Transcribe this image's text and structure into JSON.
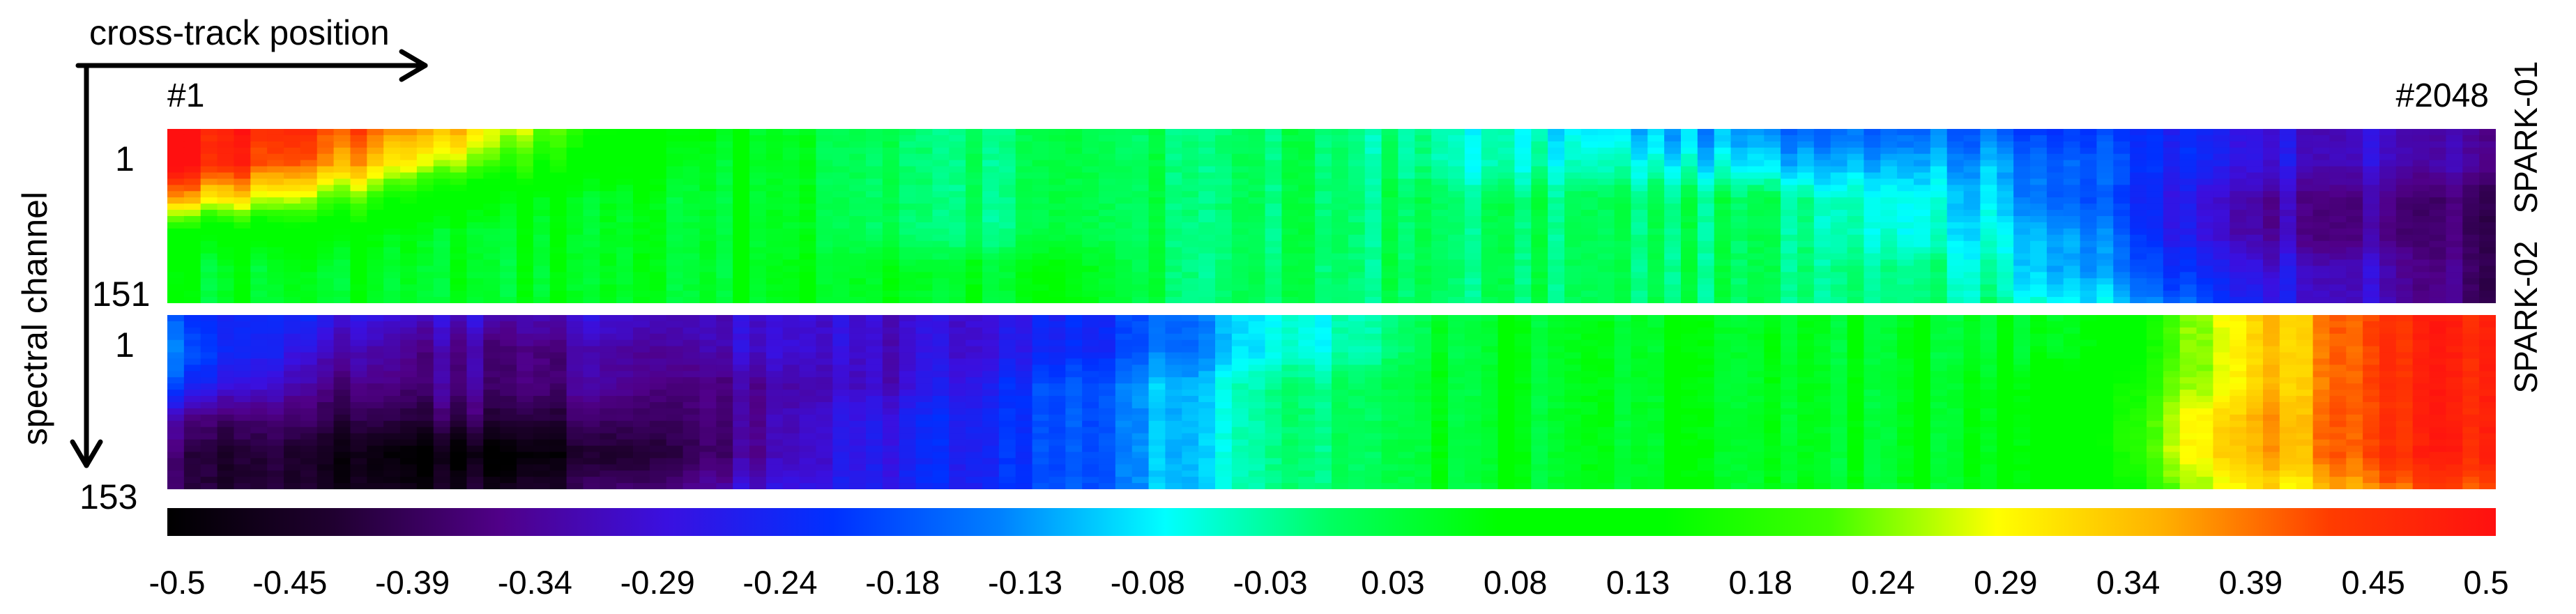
{
  "axes": {
    "x_label": "cross-track position",
    "y_label": "spectral channel",
    "x_first": "#1",
    "x_last": "#2048"
  },
  "panels": [
    {
      "name": "SPARK-01",
      "row_first": "1",
      "row_last": "151"
    },
    {
      "name": "SPARK-02",
      "row_first": "1",
      "row_last": "153"
    }
  ],
  "colorbar": {
    "ticks": [
      "-0.5",
      "-0.45",
      "-0.39",
      "-0.34",
      "-0.29",
      "-0.24",
      "-0.18",
      "-0.13",
      "-0.08",
      "-0.03",
      "0.03",
      "0.08",
      "0.13",
      "0.18",
      "0.24",
      "0.29",
      "0.34",
      "0.39",
      "0.45",
      "0.5"
    ],
    "colors": [
      "#000000",
      "#200030",
      "#500088",
      "#3a10e0",
      "#0030ff",
      "#0080ff",
      "#00ffff",
      "#00ff60",
      "#00ff00",
      "#00ff00",
      "#40ff00",
      "#ffff00",
      "#ffb000",
      "#ff3c00",
      "#ff1010"
    ]
  },
  "chart_data": {
    "type": "heatmap",
    "title": "",
    "xlabel": "cross-track position",
    "ylabel": "spectral channel",
    "x_range": [
      1,
      2048
    ],
    "color_range": [
      -0.5,
      0.5
    ],
    "grid": false,
    "panels": [
      {
        "name": "SPARK-01",
        "y_range": [
          1,
          151
        ],
        "columns": [
          1,
          128,
          256,
          384,
          512,
          640,
          768,
          896,
          1024,
          1152,
          1280,
          1408,
          1536,
          1664,
          1792,
          1920,
          2048
        ],
        "rows": [
          1,
          31,
          61,
          91,
          121,
          151
        ],
        "values": [
          [
            0.5,
            0.45,
            0.35,
            0.15,
            0.05,
            0.0,
            0.0,
            0.0,
            0.0,
            -0.05,
            -0.1,
            -0.15,
            -0.15,
            -0.2,
            -0.25,
            -0.3,
            -0.35
          ],
          [
            0.5,
            0.4,
            0.25,
            0.1,
            0.05,
            0.0,
            0.0,
            0.0,
            0.0,
            -0.05,
            -0.05,
            -0.1,
            -0.1,
            -0.15,
            -0.25,
            -0.3,
            -0.35
          ],
          [
            0.35,
            0.25,
            0.1,
            0.05,
            0.05,
            0.0,
            0.0,
            0.0,
            0.0,
            0.0,
            0.0,
            0.0,
            -0.05,
            -0.15,
            -0.3,
            -0.35,
            -0.4
          ],
          [
            0.1,
            0.1,
            0.05,
            0.05,
            0.05,
            0.0,
            0.0,
            0.0,
            0.0,
            0.0,
            0.0,
            0.0,
            -0.05,
            -0.1,
            -0.3,
            -0.35,
            -0.4
          ],
          [
            0.05,
            0.05,
            0.05,
            0.05,
            0.05,
            0.05,
            0.05,
            0.0,
            0.0,
            0.0,
            0.0,
            0.0,
            0.0,
            -0.1,
            -0.25,
            -0.3,
            -0.4
          ],
          [
            0.05,
            0.05,
            0.05,
            0.05,
            0.05,
            0.05,
            0.05,
            0.0,
            0.0,
            0.0,
            0.0,
            0.0,
            0.0,
            -0.05,
            -0.2,
            -0.3,
            -0.4
          ]
        ]
      },
      {
        "name": "SPARK-02",
        "y_range": [
          1,
          153
        ],
        "columns": [
          1,
          128,
          256,
          384,
          512,
          640,
          768,
          896,
          1024,
          1152,
          1280,
          1408,
          1536,
          1664,
          1792,
          1920,
          2048
        ],
        "rows": [
          1,
          31,
          61,
          91,
          121,
          153
        ],
        "values": [
          [
            -0.2,
            -0.25,
            -0.3,
            -0.3,
            -0.3,
            -0.3,
            -0.25,
            -0.15,
            -0.05,
            0.05,
            0.05,
            0.05,
            0.05,
            0.05,
            0.25,
            0.4,
            0.5
          ],
          [
            -0.15,
            -0.3,
            -0.35,
            -0.35,
            -0.3,
            -0.3,
            -0.25,
            -0.15,
            -0.05,
            0.05,
            0.05,
            0.05,
            0.05,
            0.05,
            0.25,
            0.4,
            0.5
          ],
          [
            -0.2,
            -0.35,
            -0.35,
            -0.35,
            -0.35,
            -0.3,
            -0.2,
            -0.1,
            0.0,
            0.05,
            0.05,
            0.05,
            0.05,
            0.1,
            0.25,
            0.4,
            0.5
          ],
          [
            -0.35,
            -0.4,
            -0.4,
            -0.4,
            -0.35,
            -0.25,
            -0.2,
            -0.1,
            0.0,
            0.05,
            0.05,
            0.05,
            0.05,
            0.1,
            0.3,
            0.4,
            0.5
          ],
          [
            -0.4,
            -0.45,
            -0.5,
            -0.45,
            -0.35,
            -0.25,
            -0.2,
            -0.1,
            0.0,
            0.05,
            0.05,
            0.05,
            0.05,
            0.1,
            0.3,
            0.4,
            0.5
          ],
          [
            -0.4,
            -0.45,
            -0.45,
            -0.4,
            -0.3,
            -0.25,
            -0.2,
            -0.1,
            0.0,
            0.05,
            0.05,
            0.05,
            0.05,
            0.1,
            0.25,
            0.35,
            0.45
          ]
        ]
      }
    ]
  }
}
